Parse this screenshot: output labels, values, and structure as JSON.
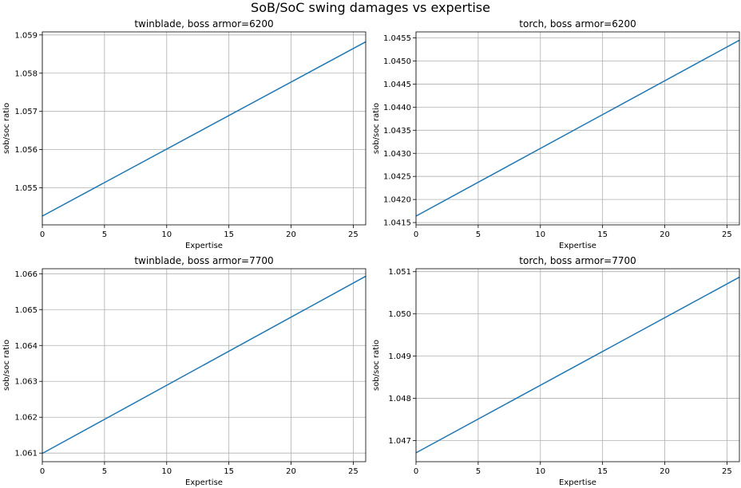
{
  "figure": {
    "title": "SoB/SoC swing damages vs expertise"
  },
  "chart_data": [
    {
      "type": "line",
      "title": "twinblade, boss armor=6200",
      "xlabel": "Expertise",
      "ylabel": "sob/soc ratio",
      "xlim": [
        0,
        26
      ],
      "ylim": [
        1.05403,
        1.05908
      ],
      "xticks": [
        0,
        5,
        10,
        15,
        20,
        25
      ],
      "yticks": [
        1.055,
        1.056,
        1.057,
        1.058,
        1.059
      ],
      "ytick_labels": [
        "1.055",
        "1.056",
        "1.057",
        "1.058",
        "1.059"
      ],
      "grid": true,
      "series": [
        {
          "color": "#1f77b4",
          "x": [
            0,
            26
          ],
          "y": [
            1.05426,
            1.05882
          ]
        }
      ]
    },
    {
      "type": "line",
      "title": "torch, boss armor=6200",
      "xlabel": "Expertise",
      "ylabel": "sob/soc ratio",
      "xlim": [
        0,
        26
      ],
      "ylim": [
        1.04145,
        1.04563
      ],
      "xticks": [
        0,
        5,
        10,
        15,
        20,
        25
      ],
      "yticks": [
        1.0415,
        1.042,
        1.0425,
        1.043,
        1.0435,
        1.044,
        1.0445,
        1.045,
        1.0455
      ],
      "ytick_labels": [
        "1.0415",
        "1.0420",
        "1.0425",
        "1.0430",
        "1.0435",
        "1.0440",
        "1.0445",
        "1.0450",
        "1.0455"
      ],
      "grid": true,
      "series": [
        {
          "color": "#1f77b4",
          "x": [
            0,
            26
          ],
          "y": [
            1.04164,
            1.04545
          ]
        }
      ]
    },
    {
      "type": "line",
      "title": "twinblade, boss armor=7700",
      "xlabel": "Expertise",
      "ylabel": "sob/soc ratio",
      "xlim": [
        0,
        26
      ],
      "ylim": [
        1.06076,
        1.06614
      ],
      "xticks": [
        0,
        5,
        10,
        15,
        20,
        25
      ],
      "yticks": [
        1.061,
        1.062,
        1.063,
        1.064,
        1.065,
        1.066
      ],
      "ytick_labels": [
        "1.061",
        "1.062",
        "1.063",
        "1.064",
        "1.065",
        "1.066"
      ],
      "grid": true,
      "series": [
        {
          "color": "#1f77b4",
          "x": [
            0,
            26
          ],
          "y": [
            1.06099,
            1.06593
          ]
        }
      ]
    },
    {
      "type": "line",
      "title": "torch, boss armor=7700",
      "xlabel": "Expertise",
      "ylabel": "sob/soc ratio",
      "xlim": [
        0,
        26
      ],
      "ylim": [
        1.0465,
        1.05107
      ],
      "xticks": [
        0,
        5,
        10,
        15,
        20,
        25
      ],
      "yticks": [
        1.047,
        1.048,
        1.049,
        1.05,
        1.051
      ],
      "ytick_labels": [
        "1.047",
        "1.048",
        "1.049",
        "1.050",
        "1.051"
      ],
      "grid": true,
      "series": [
        {
          "color": "#1f77b4",
          "x": [
            0,
            26
          ],
          "y": [
            1.04671,
            1.05087
          ]
        }
      ]
    }
  ]
}
